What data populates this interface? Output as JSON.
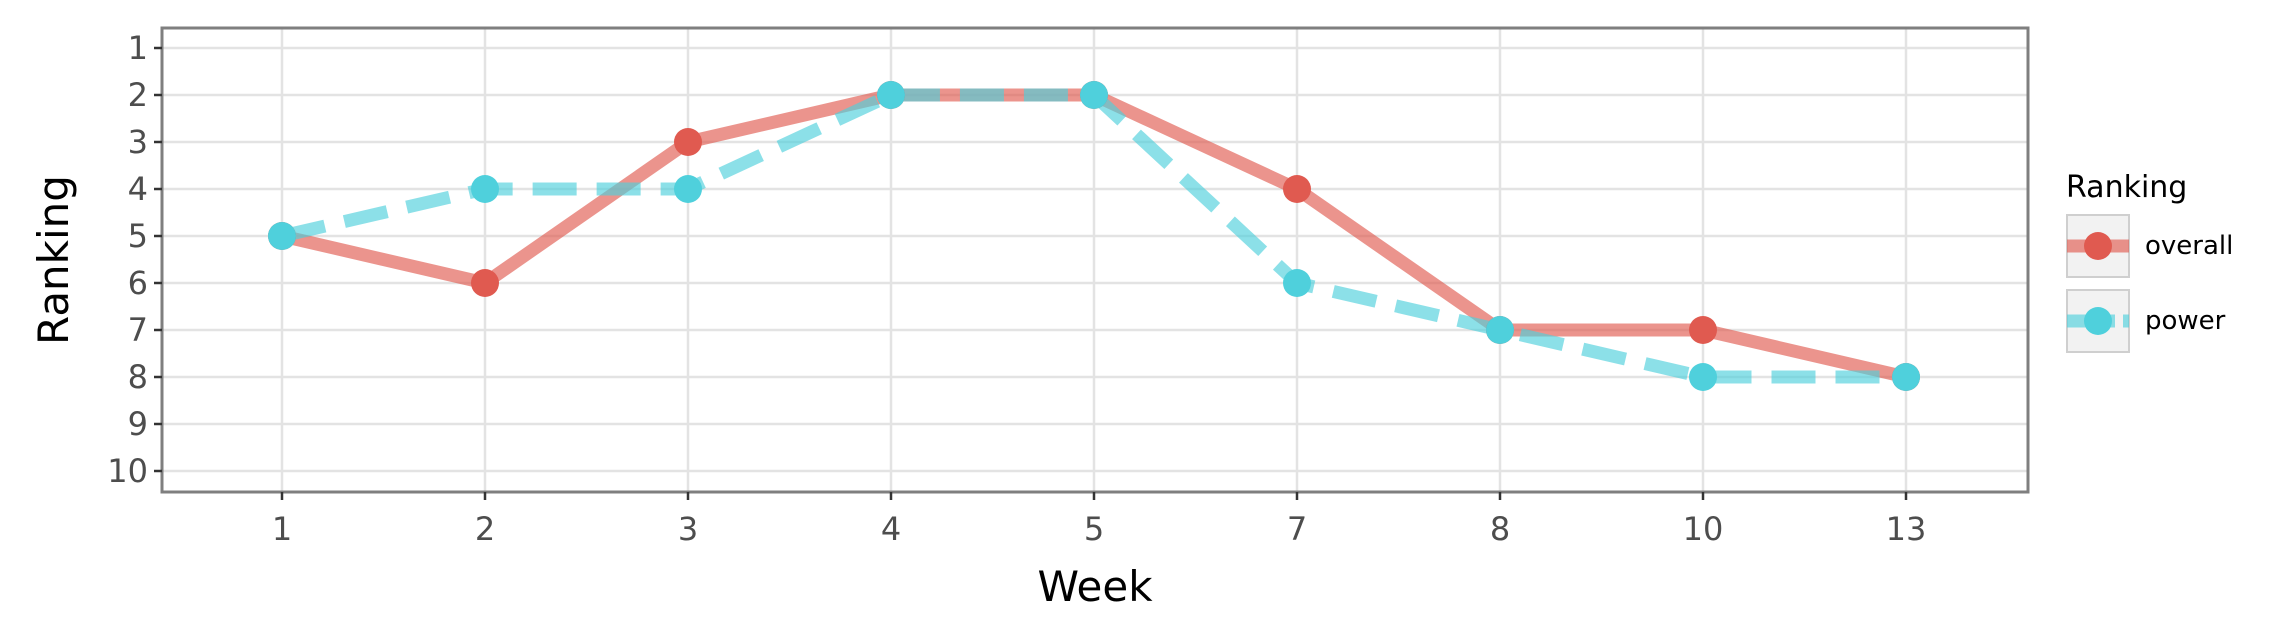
{
  "chart_data": {
    "type": "line",
    "title": "",
    "xlabel": "Week",
    "ylabel": "Ranking",
    "categories": [
      "1",
      "2",
      "3",
      "4",
      "5",
      "7",
      "8",
      "10",
      "13"
    ],
    "y_ticks": [
      "1",
      "2",
      "3",
      "4",
      "5",
      "6",
      "7",
      "8",
      "9",
      "10"
    ],
    "ylim": [
      1,
      10
    ],
    "y_reversed": true,
    "grid": true,
    "legend": {
      "title": "Ranking",
      "position": "right"
    },
    "series": [
      {
        "name": "overall",
        "color": "#e05a50",
        "line_style": "solid",
        "values": [
          5,
          6,
          3,
          2,
          2,
          4,
          7,
          7,
          8
        ]
      },
      {
        "name": "power",
        "color": "#4fd0dc",
        "line_style": "dashed",
        "values": [
          5,
          4,
          4,
          2,
          2,
          6,
          7,
          8,
          8
        ]
      }
    ]
  }
}
